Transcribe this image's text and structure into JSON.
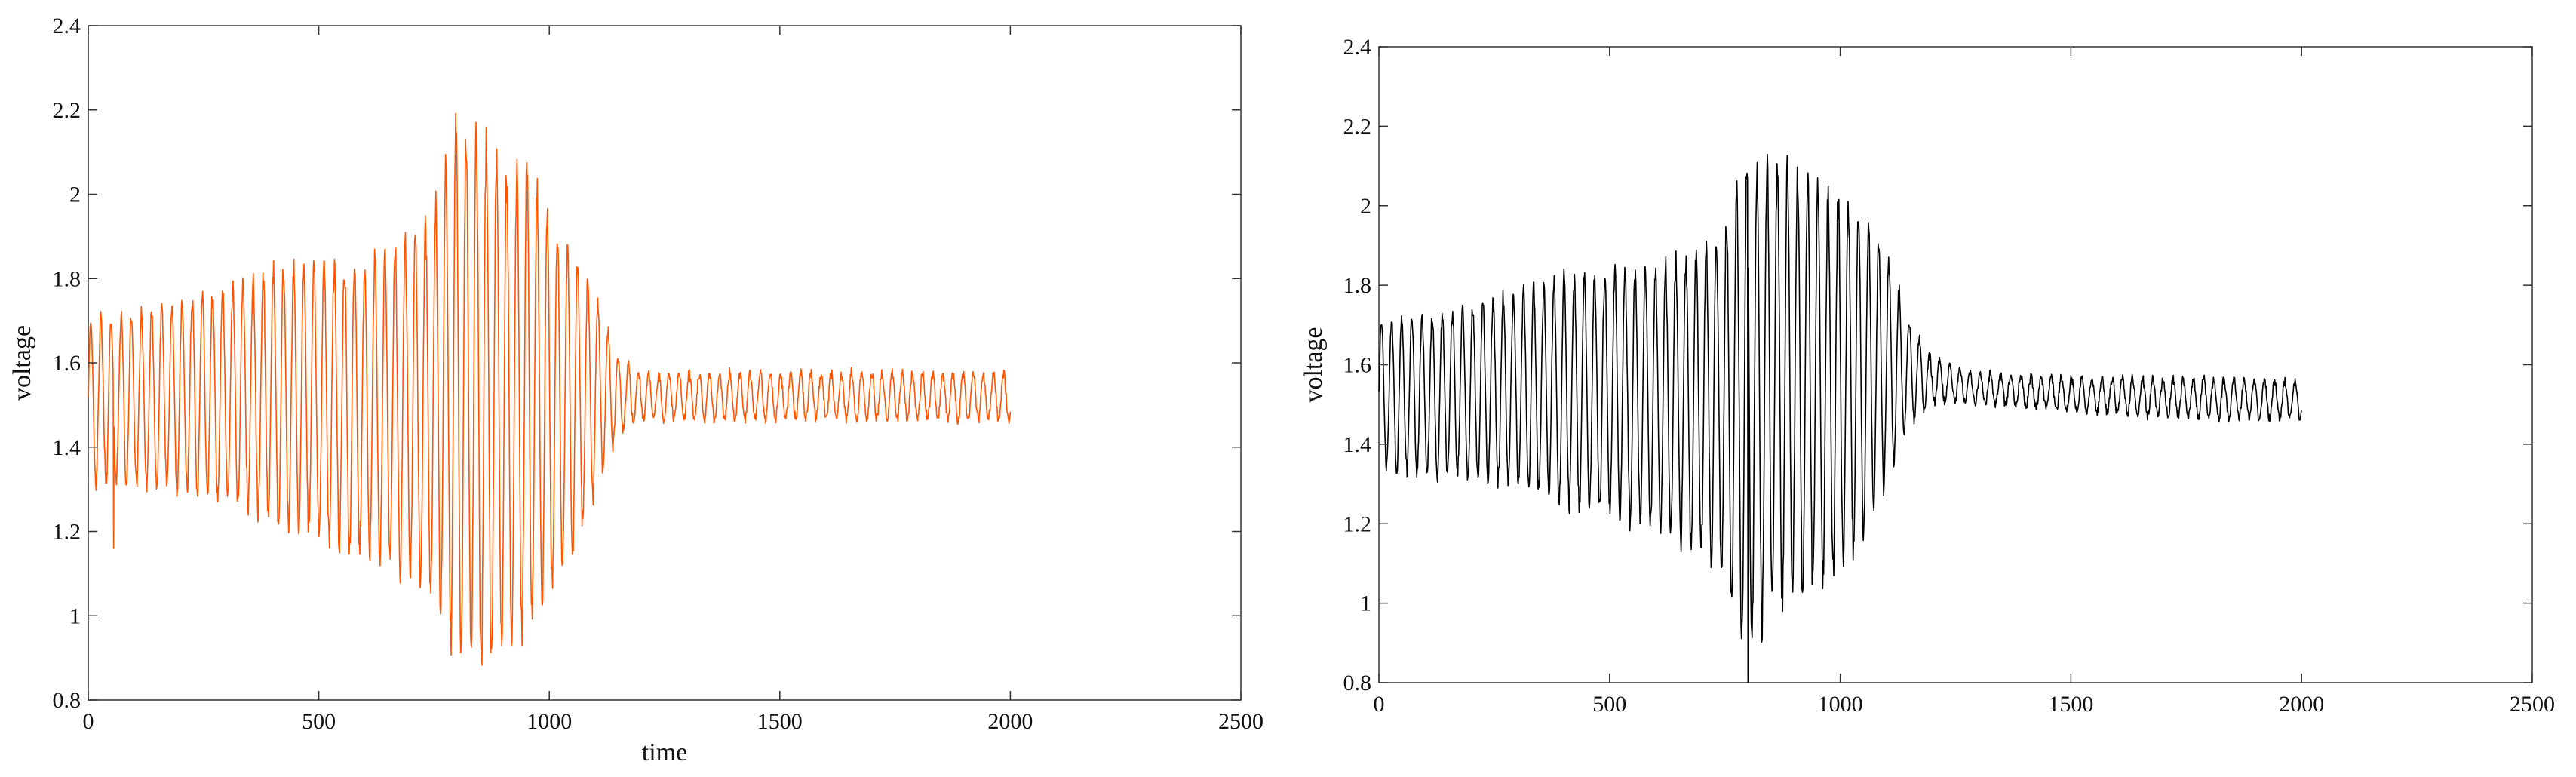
{
  "colors": {
    "series_1": "#ff5500",
    "series_2": "#000000",
    "axes": "#333333"
  },
  "chart_data": [
    {
      "type": "line",
      "xlabel": "time",
      "ylabel": "voltage",
      "xlim": [
        0,
        2500
      ],
      "ylim": [
        0.8,
        2.4
      ],
      "xticks": [
        "0",
        "500",
        "1000",
        "1500",
        "2000",
        "2500"
      ],
      "yticks": [
        "0.8",
        "1",
        "1.2",
        "1.4",
        "1.6",
        "1.8",
        "2",
        "2.2",
        "2.4"
      ],
      "grid": false,
      "legend": "none",
      "series": [
        {
          "color": "#ff5500",
          "x_range": [
            0,
            2000
          ],
          "center": 1.52,
          "oscillation_period": 22,
          "amplitude_envelope": {
            "x": [
              0,
              100,
              200,
              300,
              400,
              500,
              600,
              700,
              750,
              800,
              850,
              900,
              950,
              1000,
              1050,
              1100,
              1150,
              1200,
              1300,
              1500,
              1800,
              2000
            ],
            "upper": [
              1.72,
              1.73,
              1.76,
              1.8,
              1.84,
              1.86,
              1.87,
              1.92,
              2.0,
              2.22,
              2.2,
              2.1,
              2.1,
              1.98,
              1.9,
              1.78,
              1.62,
              1.58,
              1.58,
              1.58,
              1.58,
              1.58
            ],
            "lower": [
              1.3,
              1.29,
              1.28,
              1.25,
              1.2,
              1.16,
              1.12,
              1.06,
              1.0,
              0.86,
              0.8,
              0.88,
              0.92,
              1.0,
              1.12,
              1.28,
              1.42,
              1.46,
              1.46,
              1.46,
              1.46,
              1.46
            ]
          },
          "outliers": [
            {
              "x": 55,
              "y": 1.16
            }
          ]
        }
      ]
    },
    {
      "type": "line",
      "xlabel": "",
      "ylabel": "voltage",
      "xlim": [
        0,
        2500
      ],
      "ylim": [
        0.8,
        2.4
      ],
      "xticks": [
        "0",
        "500",
        "1000",
        "1500",
        "2000",
        "2500"
      ],
      "yticks": [
        "0.8",
        "1",
        "1.2",
        "1.4",
        "1.6",
        "1.8",
        "2",
        "2.2",
        "2.4"
      ],
      "grid": false,
      "legend": "none",
      "series": [
        {
          "color": "#000000",
          "x_range": [
            0,
            2000
          ],
          "center": 1.52,
          "oscillation_period": 22,
          "amplitude_envelope": {
            "x": [
              0,
              100,
              200,
              300,
              400,
              500,
              600,
              700,
              750,
              800,
              850,
              900,
              950,
              1000,
              1050,
              1100,
              1150,
              1200,
              1300,
              1500,
              1800,
              2000
            ],
            "upper": [
              1.73,
              1.74,
              1.76,
              1.8,
              1.84,
              1.86,
              1.87,
              1.92,
              2.0,
              2.15,
              2.16,
              2.14,
              2.1,
              2.06,
              2.0,
              1.9,
              1.72,
              1.62,
              1.58,
              1.57,
              1.57,
              1.56
            ],
            "lower": [
              1.32,
              1.31,
              1.3,
              1.28,
              1.22,
              1.2,
              1.16,
              1.1,
              1.02,
              0.8,
              0.95,
              0.96,
              1.0,
              1.04,
              1.14,
              1.28,
              1.44,
              1.5,
              1.5,
              1.48,
              1.46,
              1.46
            ]
          },
          "outliers": [
            {
              "x": 800,
              "y": 0.8
            }
          ]
        }
      ]
    }
  ]
}
